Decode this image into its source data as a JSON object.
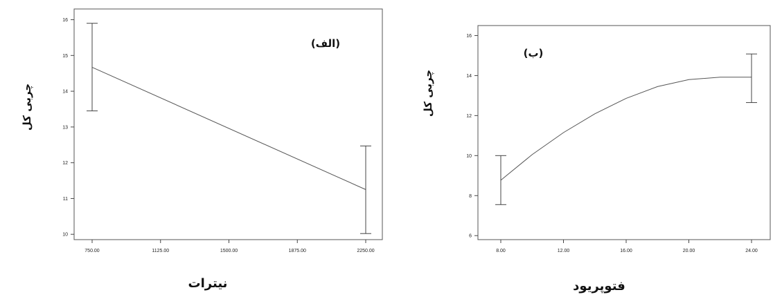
{
  "chart_data": [
    {
      "type": "line",
      "annotation": "(الف)",
      "xlabel": "نیترات",
      "ylabel": "چربی کل",
      "xlim": [
        750,
        2250
      ],
      "ylim": [
        9.85,
        16.3
      ],
      "x_ticks": [
        750,
        1125,
        1500,
        1875,
        2250
      ],
      "x_tick_labels": [
        "750.00",
        "1125.00",
        "1500.00",
        "1875.00",
        "2250.00"
      ],
      "y_ticks": [
        10,
        11,
        12,
        13,
        14,
        15,
        16
      ],
      "y_tick_labels": [
        "10",
        "11",
        "12",
        "13",
        "14",
        "15",
        "16"
      ],
      "series": [
        {
          "x": [
            750,
            2250
          ],
          "y": [
            14.67,
            11.25
          ],
          "error_low": [
            13.45,
            10.02
          ],
          "error_high": [
            15.9,
            12.47
          ]
        }
      ],
      "grid": false
    },
    {
      "type": "line",
      "annotation": "(ب)",
      "xlabel": "فتوپریود",
      "ylabel": "چربی کل",
      "xlim": [
        8,
        24
      ],
      "ylim": [
        5.8,
        16.5
      ],
      "x_ticks": [
        8,
        12,
        16,
        20,
        24
      ],
      "x_tick_labels": [
        "8.00",
        "12.00",
        "16.00",
        "20.00",
        "24.00"
      ],
      "y_ticks": [
        6,
        8,
        10,
        12,
        14,
        16
      ],
      "y_tick_labels": [
        "6",
        "8",
        "10",
        "12",
        "14",
        "16"
      ],
      "series": [
        {
          "x": [
            8,
            10,
            12,
            14,
            16,
            18,
            20,
            22,
            24
          ],
          "y": [
            8.77,
            10.05,
            11.15,
            12.09,
            12.86,
            13.45,
            13.8,
            13.92,
            13.92
          ],
          "error_x": [
            8,
            24
          ],
          "error_low": [
            7.55,
            12.65
          ],
          "error_high": [
            10.0,
            15.08
          ]
        }
      ],
      "grid": false
    }
  ]
}
